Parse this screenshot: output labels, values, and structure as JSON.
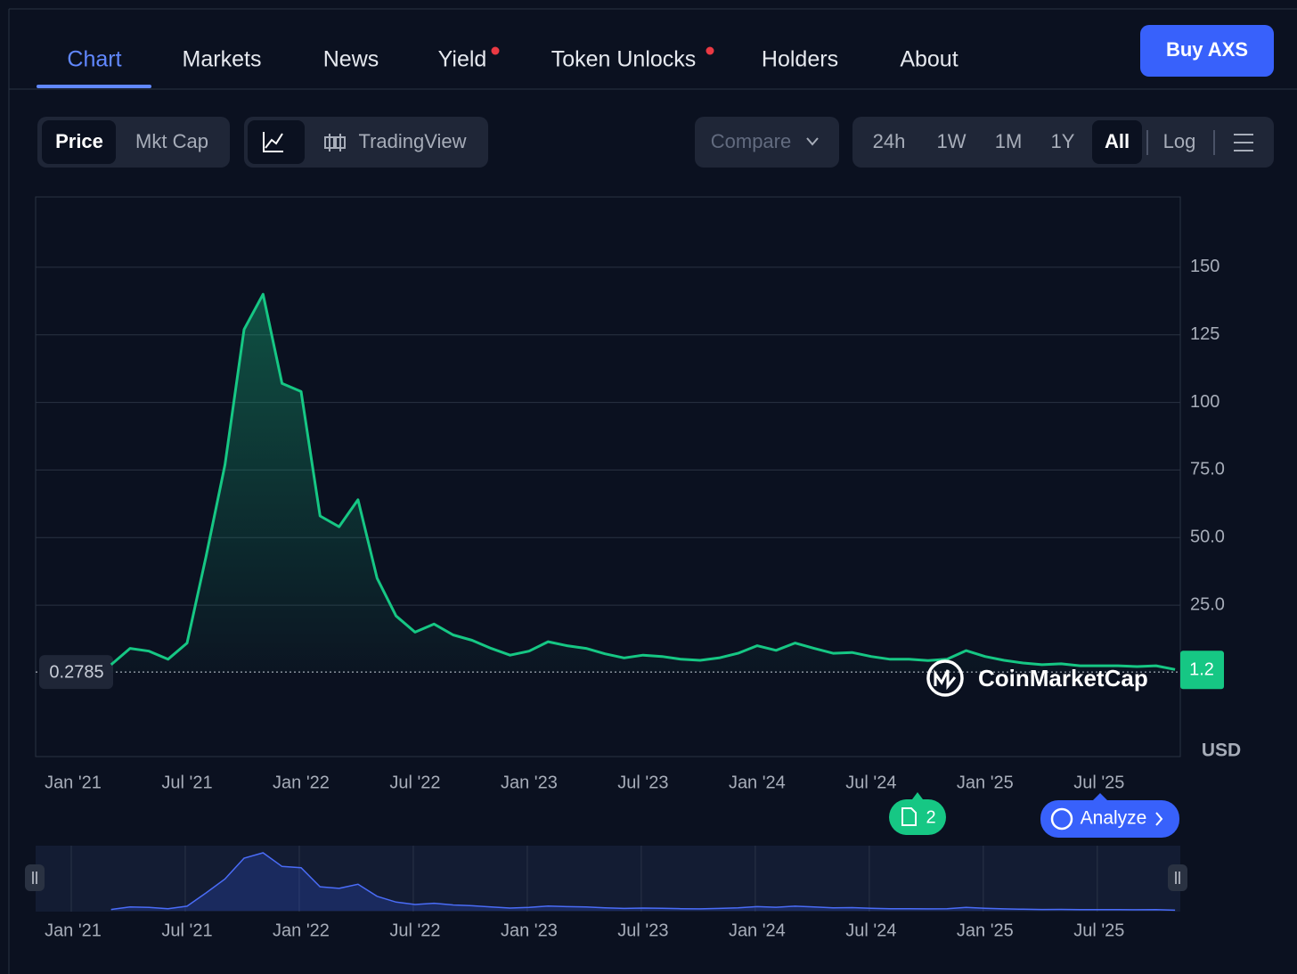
{
  "nav": {
    "tabs": [
      "Chart",
      "Markets",
      "News",
      "Yield",
      "Token Unlocks",
      "Holders",
      "About"
    ],
    "buy_button": "Buy AXS"
  },
  "controls": {
    "metric": [
      "Price",
      "Mkt Cap"
    ],
    "chart_style": "TradingView",
    "compare": "Compare",
    "ranges": [
      "24h",
      "1W",
      "1M",
      "1Y",
      "All"
    ],
    "scale": "Log"
  },
  "chart_data": {
    "type": "line",
    "categories": [
      "Jan '21",
      null,
      null,
      null,
      null,
      null,
      "Jul '21",
      null,
      null,
      null,
      null,
      null,
      "Jan '22",
      null,
      null,
      null,
      null,
      null,
      "Jul '22",
      null,
      null,
      null,
      null,
      null,
      "Jan '23",
      null,
      null,
      null,
      null,
      null,
      "Jul '23",
      null,
      null,
      null,
      null,
      null,
      "Jan '24",
      null,
      null,
      null,
      null,
      null,
      "Jul '24",
      null,
      null,
      null,
      null,
      null,
      "Jan '25",
      null,
      null,
      null,
      null,
      null,
      "Jul '25",
      null,
      null,
      null,
      null
    ],
    "values": [
      null,
      null,
      3,
      9,
      8,
      5,
      11,
      43,
      77,
      127,
      140,
      107,
      104,
      58,
      54,
      64,
      35,
      21,
      15,
      18,
      14,
      12,
      9,
      6.5,
      8,
      11.5,
      10,
      9,
      7,
      5.5,
      6.5,
      6,
      5,
      4.6,
      5.5,
      7.2,
      10,
      8.3,
      11,
      9,
      7.2,
      7.5,
      6,
      5,
      5,
      4.5,
      5,
      8.2,
      6,
      4.6,
      3.6,
      3,
      3.3,
      2.6,
      2.6,
      2.6,
      2.3,
      2.6,
      1.2
    ],
    "color": "#16c784",
    "ylim": [
      -31,
      176
    ],
    "yticks": [
      {
        "value": 25,
        "label": "25.0"
      },
      {
        "value": 50,
        "label": "50.0"
      },
      {
        "value": 75,
        "label": "75.0"
      },
      100,
      125,
      150
    ],
    "grid": true,
    "reference_line": 0.2785,
    "unit": "USD",
    "watermark": "CoinMarketCap"
  },
  "badges": {
    "news_count": 2,
    "analyze": "Analyze"
  }
}
